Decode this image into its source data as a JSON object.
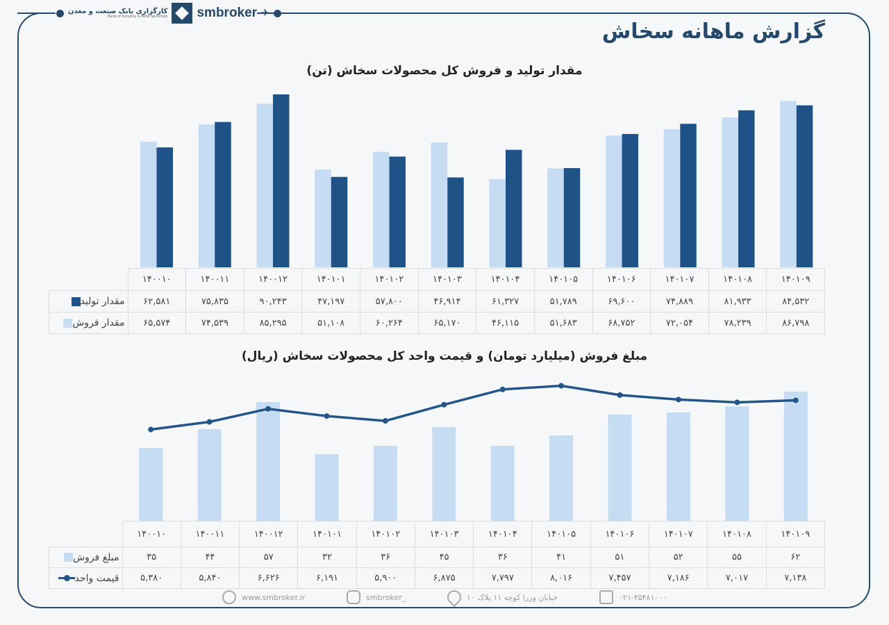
{
  "header": {
    "bank_name": "کارگزاری بانک صنعت و معدن",
    "bank_name_en": "Bank of Industry & Mine Securities",
    "brand": "smbroker",
    "title": "گزارش ماهانه سخاش"
  },
  "colors": {
    "dark_blue": "#1f5287",
    "light_blue": "#c5dcf2",
    "frame": "#24496b",
    "line": "#24558a"
  },
  "chart_data": [
    {
      "type": "bar",
      "title": "مقدار تولید و فروش کل محصولات سخاش (تن)",
      "categories": [
        "140010",
        "140011",
        "140012",
        "140101",
        "140102",
        "140103",
        "140104",
        "140105",
        "140106",
        "140107",
        "140108",
        "140109"
      ],
      "ylim": [
        0,
        100000
      ],
      "grid": false,
      "series": [
        {
          "name": "مقدار فروش",
          "color": "#c5dcf2",
          "values": [
            65574,
            74539,
            85295,
            51108,
            60264,
            65170,
            46115,
            51683,
            68752,
            72054,
            78239,
            86798
          ]
        },
        {
          "name": "مقدار تولید",
          "color": "#1f5287",
          "values": [
            62581,
            75835,
            90243,
            47197,
            57800,
            46914,
            61327,
            51789,
            69600,
            74889,
            81933,
            84532
          ]
        }
      ],
      "table": {
        "header": [
          "۱۴۰۰۱۰",
          "۱۴۰۰۱۱",
          "۱۴۰۰۱۲",
          "۱۴۰۱۰۱",
          "۱۴۰۱۰۲",
          "۱۴۰۱۰۳",
          "۱۴۰۱۰۴",
          "۱۴۰۱۰۵",
          "۱۴۰۱۰۶",
          "۱۴۰۱۰۷",
          "۱۴۰۱۰۸",
          "۱۴۰۱۰۹"
        ],
        "rows": [
          {
            "label": "مقدار تولید",
            "key": "square-dark",
            "cells": [
              "۶۲,۵۸۱",
              "۷۵,۸۳۵",
              "۹۰,۲۴۳",
              "۴۷,۱۹۷",
              "۵۷,۸۰۰",
              "۴۶,۹۱۴",
              "۶۱,۳۲۷",
              "۵۱,۷۸۹",
              "۶۹,۶۰۰",
              "۷۴,۸۸۹",
              "۸۱,۹۳۳",
              "۸۴,۵۳۲"
            ]
          },
          {
            "label": "مقدار فروش",
            "key": "square-light",
            "cells": [
              "۶۵,۵۷۴",
              "۷۴,۵۳۹",
              "۸۵,۲۹۵",
              "۵۱,۱۰۸",
              "۶۰,۲۶۴",
              "۶۵,۱۷۰",
              "۴۶,۱۱۵",
              "۵۱,۶۸۳",
              "۶۸,۷۵۲",
              "۷۲,۰۵۴",
              "۷۸,۲۳۹",
              "۸۶,۷۹۸"
            ]
          }
        ]
      }
    },
    {
      "type": "bar+line",
      "title": "مبلغ فروش (میلیارد تومان) و قیمت واحد کل محصولات سخاش (ریال)",
      "categories": [
        "140010",
        "140011",
        "140012",
        "140101",
        "140102",
        "140103",
        "140104",
        "140105",
        "140106",
        "140107",
        "140108",
        "140109"
      ],
      "ylim": [
        0,
        70
      ],
      "y2lim": [
        0,
        9000
      ],
      "grid": false,
      "series": [
        {
          "name": "مبلغ فروش",
          "type": "bar",
          "color": "#c5dcf2",
          "values": [
            35,
            44,
            57,
            32,
            36,
            45,
            36,
            41,
            51,
            52,
            55,
            62
          ]
        },
        {
          "name": "قیمت واحد",
          "type": "line",
          "color": "#24558a",
          "values": [
            5380,
            5840,
            6626,
            6191,
            5900,
            6875,
            7797,
            8016,
            7457,
            7186,
            7017,
            7138
          ]
        }
      ],
      "table": {
        "header": [
          "۱۴۰۰۱۰",
          "۱۴۰۰۱۱",
          "۱۴۰۰۱۲",
          "۱۴۰۱۰۱",
          "۱۴۰۱۰۲",
          "۱۴۰۱۰۳",
          "۱۴۰۱۰۴",
          "۱۴۰۱۰۵",
          "۱۴۰۱۰۶",
          "۱۴۰۱۰۷",
          "۱۴۰۱۰۸",
          "۱۴۰۱۰۹"
        ],
        "rows": [
          {
            "label": "مبلغ فروش",
            "key": "square-light",
            "cells": [
              "۳۵",
              "۴۴",
              "۵۷",
              "۳۲",
              "۳۶",
              "۴۵",
              "۳۶",
              "۴۱",
              "۵۱",
              "۵۲",
              "۵۵",
              "۶۲"
            ]
          },
          {
            "label": "قیمت واحد",
            "key": "line-marker",
            "cells": [
              "۵,۳۸۰",
              "۵,۸۴۰",
              "۶,۶۲۶",
              "۶,۱۹۱",
              "۵,۹۰۰",
              "۶,۸۷۵",
              "۷,۷۹۷",
              "۸,۰۱۶",
              "۷,۴۵۷",
              "۷,۱۸۶",
              "۷,۰۱۷",
              "۷,۱۳۸"
            ]
          }
        ]
      }
    }
  ],
  "footer": {
    "website": "www.smbroker.ir",
    "instagram": "smbroker_",
    "address": "خیابان وزرا کوچه ۱۱ پلاک ۱۰",
    "phone": "۰۲۱-۴۵۴۸۱۰۰۰"
  }
}
